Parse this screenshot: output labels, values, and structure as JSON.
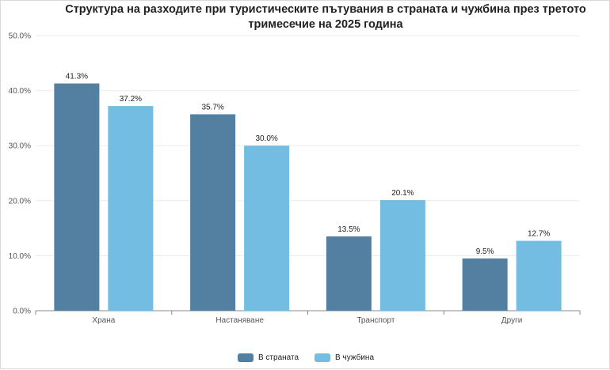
{
  "chart_data": {
    "type": "bar",
    "title": "Структура на разходите при туристическите пътувания в страната и чужбина през третото тримесечие на 2025 година",
    "categories": [
      "Храна",
      "Настаняване",
      "Транспорт",
      "Други"
    ],
    "series": [
      {
        "name": "В страната",
        "color": "#537fa0",
        "values": [
          41.3,
          35.7,
          13.5,
          9.5
        ]
      },
      {
        "name": "В чужбина",
        "color": "#72bde1",
        "values": [
          37.2,
          30.0,
          20.1,
          12.7
        ]
      }
    ],
    "ylim": [
      0,
      50
    ],
    "yticks": [
      "0.0%",
      "10.0%",
      "20.0%",
      "30.0%",
      "40.0%",
      "50.0%"
    ],
    "data_labels": [
      [
        "41.3%",
        "35.7%",
        "13.5%",
        "9.5%"
      ],
      [
        "37.2%",
        "30.0%",
        "20.1%",
        "12.7%"
      ]
    ],
    "grid": true,
    "legend_position": "bottom-center"
  }
}
